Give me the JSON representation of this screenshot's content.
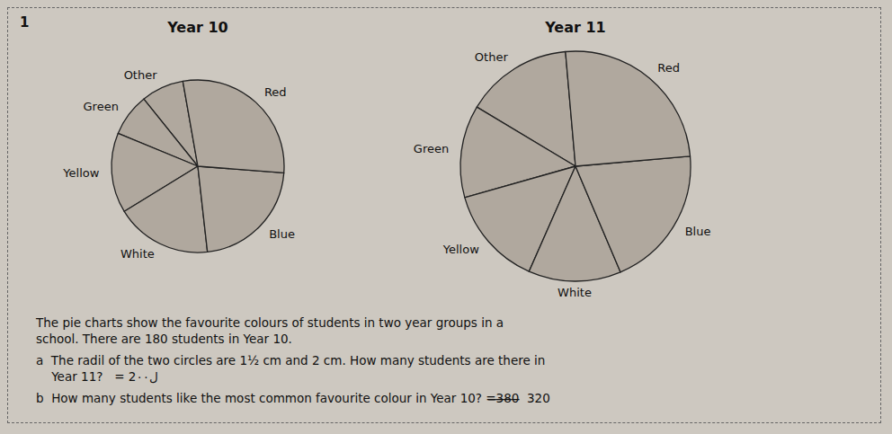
{
  "chart_data": [
    {
      "type": "pie",
      "title": "Year 10",
      "categories": [
        "Other",
        "Green",
        "Yellow",
        "White",
        "Blue",
        "Red"
      ],
      "values": [
        8,
        8,
        15,
        18,
        22,
        29
      ],
      "color": "#b0a89e",
      "annotations": [
        "1",
        "The pie charts show the favourite colours of students in two year groups in a\nschool. There are 180 students in Year 10.",
        "a  The radil of the two circles are 1½ cm and 2 cm. How many students are there in\n    Year 11?   = 2ل٠۰",
        "b  How many students like the most common favourite colour in Year 10? =̶̶3̶8̶0̶  320"
      ]
    },
    {
      "type": "pie",
      "title": "Year 11",
      "categories": [
        "Other",
        "Green",
        "Yellow",
        "White",
        "Blue",
        "Red"
      ],
      "values": [
        15,
        13,
        14,
        13,
        20,
        25
      ],
      "color": "#b0a89e"
    }
  ]
}
